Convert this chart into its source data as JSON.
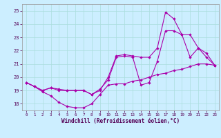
{
  "xlabel": "Windchill (Refroidissement éolien,°C)",
  "xlim": [
    -0.5,
    23.5
  ],
  "ylim": [
    17.5,
    25.5
  ],
  "yticks": [
    18,
    19,
    20,
    21,
    22,
    23,
    24,
    25
  ],
  "xticks": [
    0,
    1,
    2,
    3,
    4,
    5,
    6,
    7,
    8,
    9,
    10,
    11,
    12,
    13,
    14,
    15,
    16,
    17,
    18,
    19,
    20,
    21,
    22,
    23
  ],
  "bg_color": "#cceeff",
  "grid_color": "#aadddd",
  "line_color": "#aa00aa",
  "line1_x": [
    0,
    1,
    2,
    3,
    4,
    5,
    6,
    7,
    8,
    9,
    10,
    11,
    12,
    13,
    14,
    15,
    16,
    17,
    18,
    19,
    20,
    21,
    22,
    23
  ],
  "line1_y": [
    19.6,
    19.3,
    18.9,
    18.6,
    18.1,
    17.8,
    17.7,
    17.7,
    18.0,
    18.7,
    19.4,
    19.5,
    19.5,
    19.7,
    19.8,
    20.0,
    20.2,
    20.3,
    20.5,
    20.6,
    20.8,
    21.0,
    21.0,
    20.9
  ],
  "line2_x": [
    0,
    1,
    2,
    3,
    4,
    5,
    6,
    7,
    8,
    9,
    10,
    11,
    12,
    13,
    14,
    15,
    16,
    17,
    18,
    19,
    20,
    21,
    22,
    23
  ],
  "line2_y": [
    19.6,
    19.3,
    19.0,
    19.2,
    19.1,
    19.0,
    19.0,
    19.0,
    18.7,
    19.1,
    19.8,
    21.5,
    21.6,
    21.5,
    19.4,
    19.6,
    21.2,
    23.5,
    23.5,
    23.2,
    21.5,
    22.2,
    21.8,
    20.9
  ],
  "line3_x": [
    0,
    1,
    2,
    3,
    4,
    5,
    6,
    7,
    8,
    9,
    10,
    11,
    12,
    13,
    14,
    15,
    16,
    17,
    18,
    19,
    20,
    21,
    22,
    23
  ],
  "line3_y": [
    19.6,
    19.3,
    19.0,
    19.2,
    19.0,
    19.0,
    19.0,
    19.0,
    18.7,
    19.0,
    20.0,
    21.6,
    21.7,
    21.6,
    21.5,
    21.5,
    22.2,
    24.9,
    24.4,
    23.2,
    23.2,
    22.2,
    21.5,
    20.9
  ]
}
